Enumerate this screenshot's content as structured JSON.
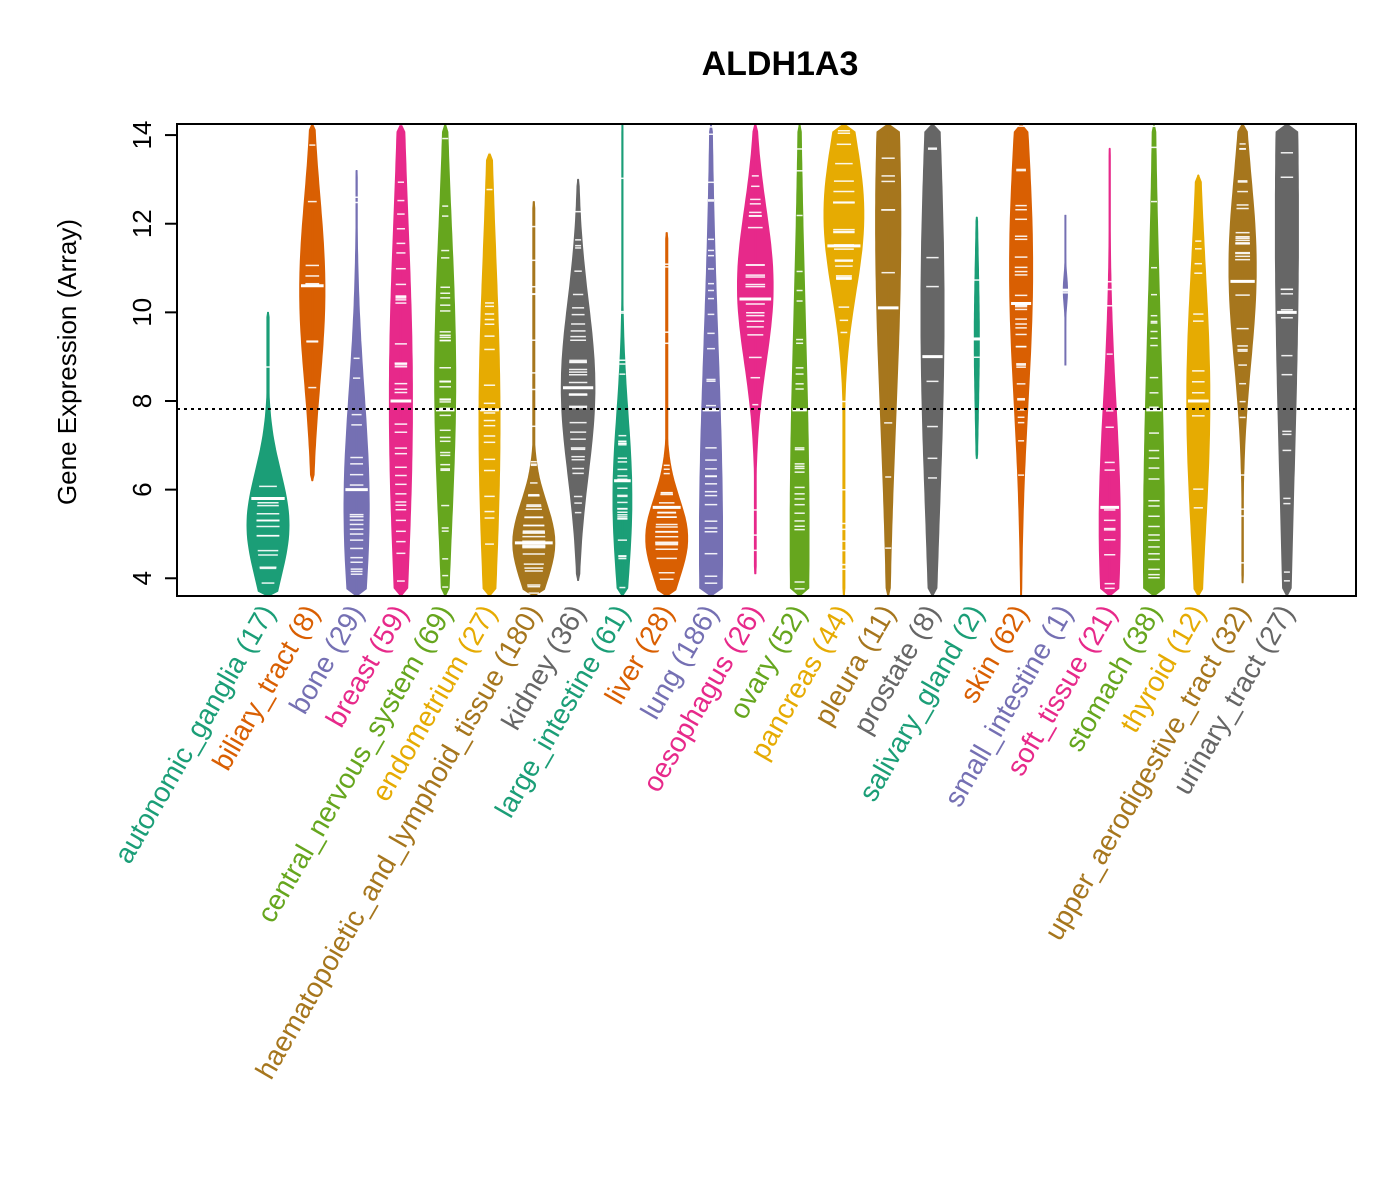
{
  "chart_data": {
    "type": "violin",
    "title": "ALDH1A3",
    "xlabel": "",
    "ylabel": "Gene Expression (Array)",
    "ylim": [
      3.6,
      14.25
    ],
    "yticks": [
      4,
      6,
      8,
      10,
      12,
      14
    ],
    "reference_line": 7.82,
    "categories": [
      {
        "name": "autonomic_ganglia",
        "n": 17,
        "label": "autonomic_ganglia (17)",
        "color": "#1b9e77",
        "median": 5.8,
        "min": 3.6,
        "max": 10.0,
        "q1": 4.8,
        "q3": 6.4,
        "peak": 5.2,
        "width": 1.0
      },
      {
        "name": "biliary_tract",
        "n": 8,
        "label": "biliary_tract (8)",
        "color": "#d95f02",
        "median": 10.6,
        "min": 6.2,
        "max": 14.25,
        "q1": 9.2,
        "q3": 12.0,
        "peak": 10.5,
        "width": 0.6
      },
      {
        "name": "bone",
        "n": 29,
        "label": "bone (29)",
        "color": "#7570b3",
        "median": 6.0,
        "min": 3.6,
        "max": 13.2,
        "q1": 5.0,
        "q3": 8.4,
        "peak": 5.6,
        "width": 0.6
      },
      {
        "name": "breast",
        "n": 59,
        "label": "breast (59)",
        "color": "#e7298a",
        "median": 8.0,
        "min": 3.6,
        "max": 14.25,
        "q1": 5.5,
        "q3": 11.0,
        "peak": 8.0,
        "width": 0.55
      },
      {
        "name": "central_nervous_system",
        "n": 69,
        "label": "central_nervous_system (69)",
        "color": "#66a61e",
        "median": 7.8,
        "min": 3.6,
        "max": 14.25,
        "q1": 5.5,
        "q3": 10.0,
        "peak": 8.5,
        "width": 0.5
      },
      {
        "name": "endometrium",
        "n": 27,
        "label": "endometrium (27)",
        "color": "#e6ab02",
        "median": 7.8,
        "min": 3.6,
        "max": 13.6,
        "q1": 5.0,
        "q3": 10.0,
        "peak": 7.5,
        "width": 0.5
      },
      {
        "name": "haematopoietic_and_lymphoid_tissue",
        "n": 180,
        "label": "haematopoietic_and_lymphoid_tissue (180)",
        "color": "#a6761d",
        "median": 4.8,
        "min": 3.6,
        "max": 12.5,
        "q1": 4.2,
        "q3": 5.4,
        "peak": 4.8,
        "width": 1.0
      },
      {
        "name": "kidney",
        "n": 36,
        "label": "kidney (36)",
        "color": "#666666",
        "median": 8.3,
        "min": 3.95,
        "max": 13.0,
        "q1": 7.0,
        "q3": 9.6,
        "peak": 8.3,
        "width": 0.8
      },
      {
        "name": "large_intestine",
        "n": 61,
        "label": "large_intestine (61)",
        "color": "#1b9e77",
        "median": 6.2,
        "min": 3.6,
        "max": 14.25,
        "q1": 5.0,
        "q3": 7.5,
        "peak": 5.8,
        "width": 0.45
      },
      {
        "name": "liver",
        "n": 28,
        "label": "liver (28)",
        "color": "#d95f02",
        "median": 5.6,
        "min": 3.6,
        "max": 11.8,
        "q1": 4.6,
        "q3": 5.8,
        "peak": 4.9,
        "width": 1.0
      },
      {
        "name": "lung",
        "n": 186,
        "label": "lung (186)",
        "color": "#7570b3",
        "median": 7.8,
        "min": 3.6,
        "max": 14.25,
        "q1": 5.0,
        "q3": 11.0,
        "peak": 4.8,
        "width": 0.55
      },
      {
        "name": "oesophagus",
        "n": 26,
        "label": "oesophagus (26)",
        "color": "#e7298a",
        "median": 10.3,
        "min": 4.1,
        "max": 14.25,
        "q1": 9.5,
        "q3": 11.8,
        "peak": 10.6,
        "width": 0.85
      },
      {
        "name": "ovary",
        "n": 52,
        "label": "ovary (52)",
        "color": "#66a61e",
        "median": 7.8,
        "min": 3.6,
        "max": 14.25,
        "q1": 5.0,
        "q3": 11.5,
        "peak": 5.0,
        "width": 0.45
      },
      {
        "name": "pancreas",
        "n": 44,
        "label": "pancreas (44)",
        "color": "#e6ab02",
        "median": 11.5,
        "min": 3.6,
        "max": 14.25,
        "q1": 10.5,
        "q3": 12.8,
        "peak": 12.2,
        "width": 0.95
      },
      {
        "name": "pleura",
        "n": 11,
        "label": "pleura (11)",
        "color": "#a6761d",
        "median": 10.1,
        "min": 3.6,
        "max": 14.25,
        "q1": 7.0,
        "q3": 12.8,
        "peak": 12.0,
        "width": 0.6
      },
      {
        "name": "prostate",
        "n": 8,
        "label": "prostate (8)",
        "color": "#666666",
        "median": 9.0,
        "min": 3.6,
        "max": 14.25,
        "q1": 5.0,
        "q3": 11.0,
        "peak": 10.0,
        "width": 0.55
      },
      {
        "name": "salivary_gland",
        "n": 2,
        "label": "salivary_gland (2)",
        "color": "#1b9e77",
        "median": 9.4,
        "min": 6.7,
        "max": 12.15,
        "q1": 8.3,
        "q3": 10.6,
        "peak": 9.4,
        "width": 0.12
      },
      {
        "name": "skin",
        "n": 62,
        "label": "skin (62)",
        "color": "#d95f02",
        "median": 10.2,
        "min": 3.6,
        "max": 14.25,
        "q1": 8.0,
        "q3": 12.0,
        "peak": 11.0,
        "width": 0.55
      },
      {
        "name": "small_intestine",
        "n": 1,
        "label": "small_intestine (1)",
        "color": "#7570b3",
        "median": 10.5,
        "min": 8.8,
        "max": 12.2,
        "q1": 10.5,
        "q3": 10.5,
        "peak": 10.5,
        "width": 0.1
      },
      {
        "name": "soft_tissue",
        "n": 21,
        "label": "soft_tissue (21)",
        "color": "#e7298a",
        "median": 5.6,
        "min": 3.6,
        "max": 13.7,
        "q1": 4.7,
        "q3": 8.3,
        "peak": 5.2,
        "width": 0.5
      },
      {
        "name": "stomach",
        "n": 38,
        "label": "stomach (38)",
        "color": "#66a61e",
        "median": 7.8,
        "min": 3.6,
        "max": 14.25,
        "q1": 4.8,
        "q3": 11.5,
        "peak": 4.6,
        "width": 0.5
      },
      {
        "name": "thyroid",
        "n": 12,
        "label": "thyroid (12)",
        "color": "#e6ab02",
        "median": 8.0,
        "min": 3.6,
        "max": 13.1,
        "q1": 6.5,
        "q3": 10.5,
        "peak": 8.0,
        "width": 0.55
      },
      {
        "name": "upper_aerodigestive_tract",
        "n": 32,
        "label": "upper_aerodigestive_tract (32)",
        "color": "#a6761d",
        "median": 10.7,
        "min": 3.9,
        "max": 14.25,
        "q1": 9.5,
        "q3": 12.3,
        "peak": 11.0,
        "width": 0.65
      },
      {
        "name": "urinary_tract",
        "n": 27,
        "label": "urinary_tract (27)",
        "color": "#666666",
        "median": 10.0,
        "min": 3.6,
        "max": 14.25,
        "q1": 5.0,
        "q3": 12.8,
        "peak": 12.0,
        "width": 0.55
      }
    ]
  }
}
